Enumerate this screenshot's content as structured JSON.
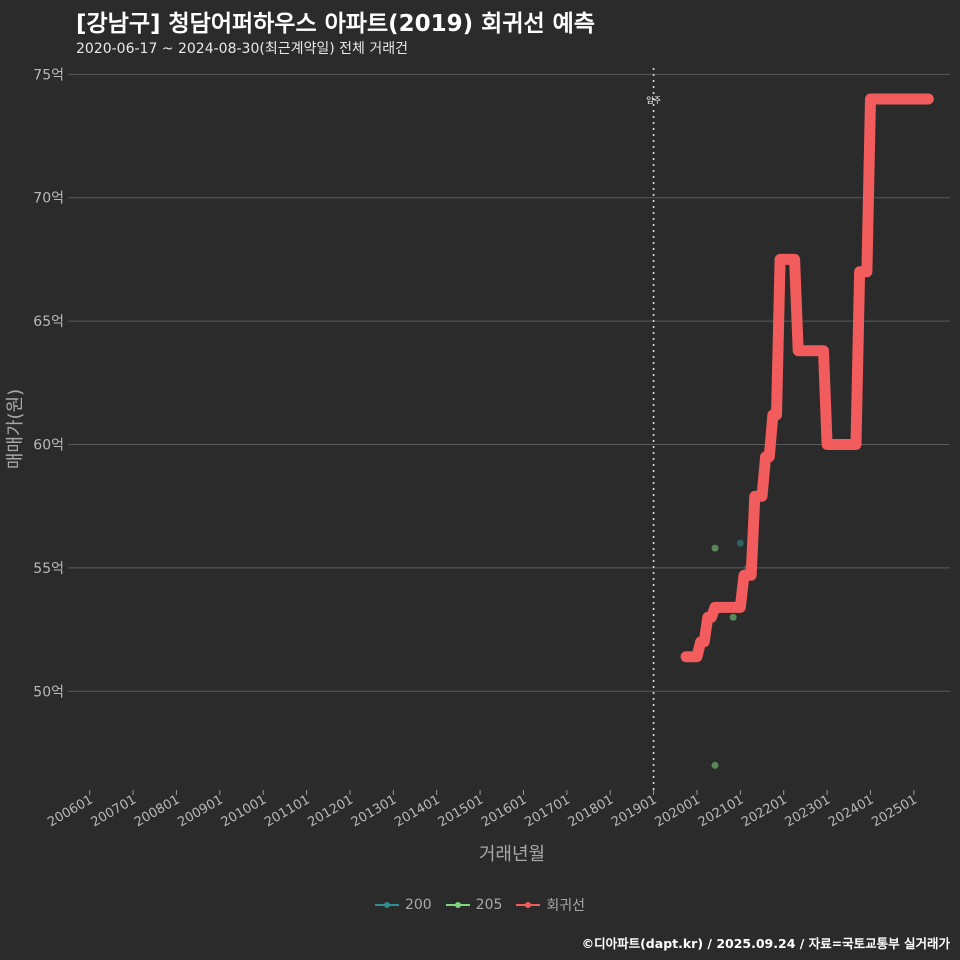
{
  "title": "[강남구] 청담어퍼하우스 아파트(2019) 회귀선 예측",
  "subtitle": "2020-06-17 ~ 2024-08-30(최근계약일) 전체 거래건",
  "caption": "©디아파트(dapt.kr) / 2025.09.24 / 자료=국토교통부 실거래가",
  "colors": {
    "background": "#2b2b2b",
    "grid": "#5a5a5a",
    "series_200": "#2f8f8f",
    "series_205": "#7ed67e",
    "regression": "#f25c5c"
  },
  "chart_data": {
    "type": "line",
    "xlabel": "거래년월",
    "ylabel": "매매가(원)",
    "x_ticks": [
      "200601",
      "200701",
      "200801",
      "200901",
      "201001",
      "201101",
      "201201",
      "201301",
      "201401",
      "201501",
      "201601",
      "201701",
      "201801",
      "201901",
      "202001",
      "202101",
      "202201",
      "202301",
      "202401",
      "202501"
    ],
    "y_ticks": [
      {
        "value": 50,
        "label": "50억"
      },
      {
        "value": 55,
        "label": "55억"
      },
      {
        "value": 60,
        "label": "60억"
      },
      {
        "value": 65,
        "label": "65억"
      },
      {
        "value": 70,
        "label": "70억"
      },
      {
        "value": 75,
        "label": "75억"
      }
    ],
    "ylim": [
      46,
      75.5
    ],
    "xlim": [
      "2005-07",
      "2025-11"
    ],
    "grid": "horizontal",
    "vline": {
      "x": "2019-01",
      "label": "입주"
    },
    "legend_position": "bottom",
    "series": [
      {
        "name": "200",
        "kind": "scatter",
        "points": [
          {
            "x": "2021-01",
            "y": 56.0
          },
          {
            "x": "2021-03",
            "y": 55.0
          }
        ]
      },
      {
        "name": "205",
        "kind": "scatter",
        "points": [
          {
            "x": "2020-06",
            "y": 55.8
          },
          {
            "x": "2020-06",
            "y": 47.0
          },
          {
            "x": "2020-11",
            "y": 53.0
          }
        ]
      },
      {
        "name": "회귀선",
        "kind": "line",
        "points": [
          {
            "x": "2019-10",
            "y": 51.4
          },
          {
            "x": "2020-01",
            "y": 51.4
          },
          {
            "x": "2020-02",
            "y": 52.0
          },
          {
            "x": "2020-03",
            "y": 52.0
          },
          {
            "x": "2020-04",
            "y": 53.0
          },
          {
            "x": "2020-05",
            "y": 53.0
          },
          {
            "x": "2020-06",
            "y": 53.4
          },
          {
            "x": "2021-01",
            "y": 53.4
          },
          {
            "x": "2021-02",
            "y": 54.7
          },
          {
            "x": "2021-04",
            "y": 54.7
          },
          {
            "x": "2021-05",
            "y": 57.9
          },
          {
            "x": "2021-07",
            "y": 57.9
          },
          {
            "x": "2021-08",
            "y": 59.5
          },
          {
            "x": "2021-09",
            "y": 59.5
          },
          {
            "x": "2021-10",
            "y": 61.2
          },
          {
            "x": "2021-11",
            "y": 61.2
          },
          {
            "x": "2021-12",
            "y": 67.5
          },
          {
            "x": "2022-04",
            "y": 67.5
          },
          {
            "x": "2022-05",
            "y": 63.8
          },
          {
            "x": "2022-12",
            "y": 63.8
          },
          {
            "x": "2023-01",
            "y": 60.0
          },
          {
            "x": "2023-09",
            "y": 60.0
          },
          {
            "x": "2023-10",
            "y": 67.0
          },
          {
            "x": "2023-12",
            "y": 67.0
          },
          {
            "x": "2024-01",
            "y": 74.0
          },
          {
            "x": "2025-05",
            "y": 74.0
          }
        ]
      }
    ]
  }
}
